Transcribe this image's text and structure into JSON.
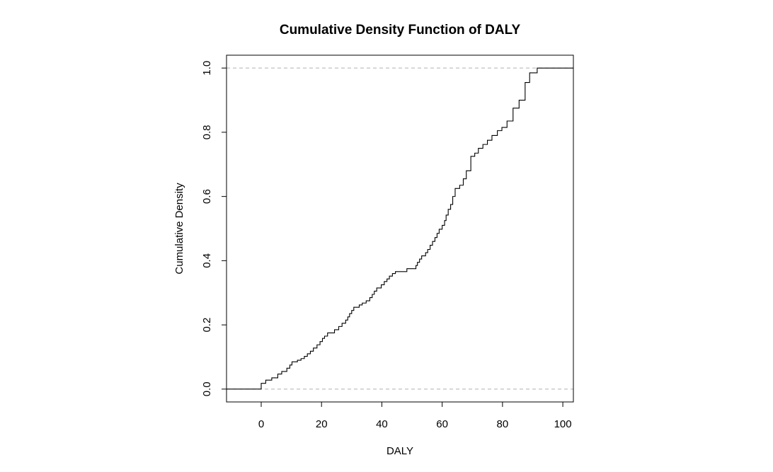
{
  "chart_data": {
    "type": "line",
    "subtype": "step-ecdf",
    "title": "Cumulative Density Function of DALY",
    "xlabel": "DALY",
    "ylabel": "Cumulative Density",
    "xlim": [
      -11.5,
      103.5
    ],
    "ylim": [
      -0.04,
      1.04
    ],
    "xticks": [
      0,
      20,
      40,
      60,
      80,
      100
    ],
    "xtick_labels": [
      "0",
      "20",
      "40",
      "60",
      "80",
      "100"
    ],
    "yticks": [
      0.0,
      0.2,
      0.4,
      0.6,
      0.8,
      1.0
    ],
    "ytick_labels": [
      "0.0",
      "0.2",
      "0.4",
      "0.6",
      "0.8",
      "1.0"
    ],
    "reference_lines": [
      0.0,
      1.0
    ],
    "reference_line_style": "dashed",
    "reference_line_color": "#b0b0b0",
    "line_color": "#000000",
    "grid": false,
    "legend": "none",
    "points": [
      [
        0.0,
        0.018
      ],
      [
        1.5,
        0.028
      ],
      [
        3.5,
        0.035
      ],
      [
        5.5,
        0.047
      ],
      [
        6.8,
        0.055
      ],
      [
        8.5,
        0.065
      ],
      [
        9.5,
        0.075
      ],
      [
        10.2,
        0.085
      ],
      [
        12.0,
        0.09
      ],
      [
        13.2,
        0.095
      ],
      [
        14.3,
        0.102
      ],
      [
        15.3,
        0.11
      ],
      [
        16.3,
        0.118
      ],
      [
        17.3,
        0.128
      ],
      [
        18.5,
        0.138
      ],
      [
        19.5,
        0.148
      ],
      [
        20.3,
        0.158
      ],
      [
        21.0,
        0.165
      ],
      [
        22.0,
        0.175
      ],
      [
        24.3,
        0.185
      ],
      [
        25.7,
        0.195
      ],
      [
        26.8,
        0.205
      ],
      [
        28.0,
        0.215
      ],
      [
        28.7,
        0.225
      ],
      [
        29.3,
        0.235
      ],
      [
        30.0,
        0.245
      ],
      [
        30.7,
        0.255
      ],
      [
        32.5,
        0.262
      ],
      [
        33.5,
        0.268
      ],
      [
        34.8,
        0.275
      ],
      [
        36.0,
        0.285
      ],
      [
        36.8,
        0.295
      ],
      [
        37.5,
        0.305
      ],
      [
        38.3,
        0.315
      ],
      [
        39.8,
        0.325
      ],
      [
        40.8,
        0.335
      ],
      [
        41.7,
        0.343
      ],
      [
        42.5,
        0.352
      ],
      [
        43.5,
        0.36
      ],
      [
        44.5,
        0.366
      ],
      [
        48.3,
        0.375
      ],
      [
        51.3,
        0.385
      ],
      [
        51.8,
        0.395
      ],
      [
        52.5,
        0.405
      ],
      [
        53.2,
        0.415
      ],
      [
        54.5,
        0.425
      ],
      [
        55.2,
        0.435
      ],
      [
        56.0,
        0.448
      ],
      [
        56.8,
        0.46
      ],
      [
        57.6,
        0.472
      ],
      [
        58.3,
        0.485
      ],
      [
        59.0,
        0.498
      ],
      [
        60.0,
        0.51
      ],
      [
        60.8,
        0.525
      ],
      [
        61.3,
        0.542
      ],
      [
        62.0,
        0.56
      ],
      [
        62.8,
        0.575
      ],
      [
        63.5,
        0.6
      ],
      [
        64.3,
        0.625
      ],
      [
        65.8,
        0.635
      ],
      [
        67.0,
        0.655
      ],
      [
        68.0,
        0.68
      ],
      [
        69.5,
        0.725
      ],
      [
        70.8,
        0.735
      ],
      [
        72.0,
        0.75
      ],
      [
        73.5,
        0.762
      ],
      [
        75.0,
        0.775
      ],
      [
        76.5,
        0.79
      ],
      [
        78.3,
        0.805
      ],
      [
        79.8,
        0.815
      ],
      [
        81.5,
        0.835
      ],
      [
        83.5,
        0.875
      ],
      [
        85.5,
        0.9
      ],
      [
        87.5,
        0.955
      ],
      [
        89.0,
        0.985
      ],
      [
        91.5,
        1.0
      ]
    ],
    "x_start": -11.5,
    "x_end": 103.5
  }
}
